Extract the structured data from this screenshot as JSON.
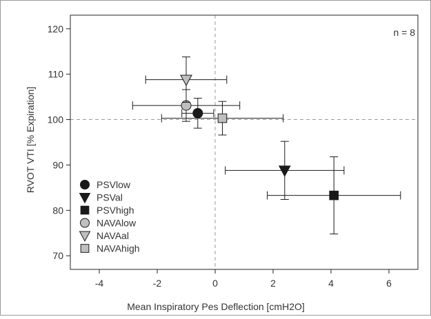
{
  "chart_data": {
    "type": "scatter",
    "xlabel": "Mean Inspiratory Pes Deflection [cmH2O]",
    "ylabel": "RVOT VTI [% Expiration]",
    "annotation": "n = 8",
    "xlim": [
      -5,
      7
    ],
    "ylim": [
      67,
      123
    ],
    "x_ticks": [
      -4,
      -2,
      0,
      2,
      4,
      6
    ],
    "y_ticks": [
      70,
      80,
      90,
      100,
      110,
      120
    ],
    "x_tick_labels": [
      "-4",
      "-2",
      "0",
      "2",
      "4",
      "6"
    ],
    "y_tick_labels": [
      "70",
      "80",
      "90",
      "100",
      "110",
      "120"
    ],
    "reference_lines": {
      "x": 0,
      "y": 100
    },
    "grid": false,
    "legend_position": "bottom-left",
    "series": [
      {
        "name": "PSVlow",
        "marker": "circle",
        "color": "#1a1a1a",
        "x": -0.6,
        "y": 101.4,
        "x_err": 0.55,
        "y_err": 3.3
      },
      {
        "name": "PSVal",
        "marker": "triangle-down",
        "color": "#1a1a1a",
        "x": 2.4,
        "y": 88.8,
        "x_err": 2.05,
        "y_err": 6.4
      },
      {
        "name": "PSVhigh",
        "marker": "square",
        "color": "#1a1a1a",
        "x": 4.1,
        "y": 83.3,
        "x_err": 2.3,
        "y_err": 8.5
      },
      {
        "name": "NAVAlow",
        "marker": "circle",
        "color": "#bfbfbf",
        "x": -1.0,
        "y": 103.1,
        "x_err": 1.85,
        "y_err": 3.5
      },
      {
        "name": "NAVAal",
        "marker": "triangle-down",
        "color": "#bfbfbf",
        "x": -1.0,
        "y": 108.8,
        "x_err": 1.4,
        "y_err": 5.0
      },
      {
        "name": "NAVAhigh",
        "marker": "square",
        "color": "#bfbfbf",
        "x": 0.25,
        "y": 100.3,
        "x_err": 2.1,
        "y_err": 3.7
      }
    ]
  }
}
